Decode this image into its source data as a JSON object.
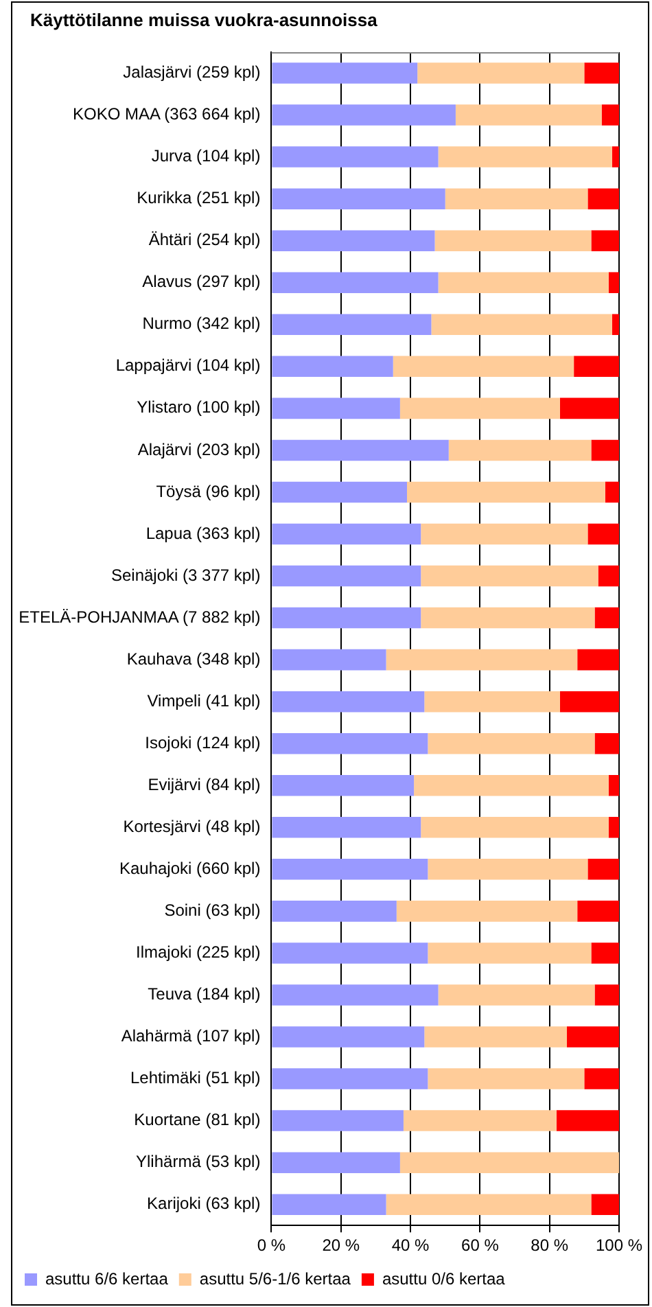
{
  "chart_data": {
    "type": "bar",
    "orientation": "horizontal",
    "stacked": true,
    "title": "Käyttötilanne muissa vuokra-asunnoissa",
    "categories": [
      "Jalasjärvi (259 kpl)",
      "KOKO MAA (363 664 kpl)",
      "Jurva (104 kpl)",
      "Kurikka (251 kpl)",
      "Ähtäri (254 kpl)",
      "Alavus (297 kpl)",
      "Nurmo (342 kpl)",
      "Lappajärvi (104 kpl)",
      "Ylistaro (100 kpl)",
      "Alajärvi (203 kpl)",
      "Töysä (96 kpl)",
      "Lapua (363 kpl)",
      "Seinäjoki (3 377 kpl)",
      "ETELÄ-POHJANMAA (7 882 kpl)",
      "Kauhava (348 kpl)",
      "Vimpeli (41 kpl)",
      "Isojoki (124 kpl)",
      "Evijärvi (84 kpl)",
      "Kortesjärvi (48 kpl)",
      "Kauhajoki (660 kpl)",
      "Soini (63 kpl)",
      "Ilmajoki (225 kpl)",
      "Teuva (184 kpl)",
      "Alahärmä (107 kpl)",
      "Lehtimäki (51 kpl)",
      "Kuortane (81 kpl)",
      "Ylihärmä (53 kpl)",
      "Karijoki (63 kpl)"
    ],
    "series": [
      {
        "name": "asuttu 6/6 kertaa",
        "color": "#9999ff",
        "values": [
          42,
          53,
          48,
          50,
          47,
          48,
          46,
          35,
          37,
          51,
          39,
          43,
          43,
          43,
          33,
          44,
          45,
          41,
          43,
          45,
          36,
          45,
          48,
          44,
          45,
          38,
          37,
          33
        ]
      },
      {
        "name": "asuttu 5/6-1/6 kertaa",
        "color": "#ffcc99",
        "values": [
          48,
          42,
          50,
          41,
          45,
          49,
          52,
          52,
          46,
          41,
          57,
          48,
          51,
          50,
          55,
          39,
          48,
          56,
          54,
          46,
          52,
          47,
          45,
          41,
          45,
          44,
          63,
          59
        ]
      },
      {
        "name": "asuttu 0/6 kertaa",
        "color": "#ff0000",
        "values": [
          10,
          5,
          2,
          9,
          8,
          3,
          2,
          13,
          17,
          8,
          4,
          9,
          6,
          7,
          12,
          17,
          7,
          3,
          3,
          9,
          12,
          8,
          7,
          15,
          10,
          18,
          0,
          8
        ]
      }
    ],
    "xlim": [
      0,
      100
    ],
    "xticks": [
      {
        "value": 0,
        "label": "0 %"
      },
      {
        "value": 20,
        "label": "20 %"
      },
      {
        "value": 40,
        "label": "40 %"
      },
      {
        "value": 60,
        "label": "60 %"
      },
      {
        "value": 80,
        "label": "80 %"
      },
      {
        "value": 100,
        "label": "100 %"
      }
    ],
    "grid": "x",
    "legend": "bottom"
  }
}
